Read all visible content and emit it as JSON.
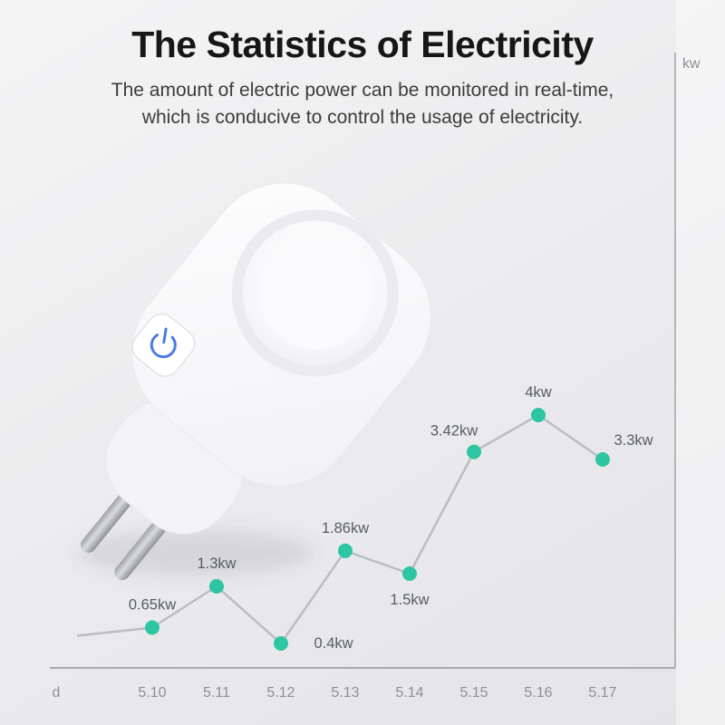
{
  "page": {
    "title": "The Statistics of Electricity",
    "subtitle_line1": "The amount of electric power can be monitored in real-time,",
    "subtitle_line2": "which is conducive to control the usage of electricity."
  },
  "icons": {
    "power_button": "power-symbol"
  },
  "chart_data": {
    "type": "line",
    "x": [
      "5.10",
      "5.11",
      "5.12",
      "5.13",
      "5.14",
      "5.15",
      "5.16",
      "5.17"
    ],
    "values": [
      0.65,
      1.3,
      0.4,
      1.86,
      1.5,
      3.42,
      4,
      3.3
    ],
    "point_labels": [
      "0.65kw",
      "1.3kw",
      "0.4kw",
      "1.86kw",
      "1.5kw",
      "3.42kw",
      "4kw",
      "3.3kw"
    ],
    "x_axis_label": "d",
    "y_axis_label": "kw",
    "ylim": [
      0,
      4.5
    ],
    "grid": false,
    "legend": "none",
    "y_axis_side": "right",
    "line_color": "#b9bdc2",
    "point_color": "#2fc5a2",
    "label_positions": [
      "above",
      "above",
      "right",
      "above",
      "below",
      "above-left",
      "above",
      "above-right"
    ]
  },
  "colors": {
    "title": "#161616",
    "subtitle": "#3c3c3c",
    "axis": "#a6aaaf",
    "tick_label": "#8b9096",
    "point_label": "#565d63",
    "button_accent": "#4b7be5",
    "background_top": "#f4f4f5",
    "background_bottom": "#e4e4e7"
  }
}
